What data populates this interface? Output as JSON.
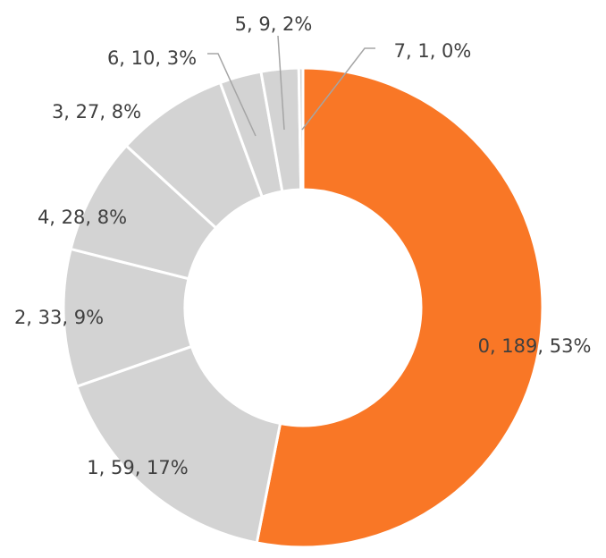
{
  "chart_data": {
    "type": "donut",
    "start_angle_deg": 0,
    "direction": "clockwise",
    "colors": {
      "highlight": "#F97726",
      "other": "#D3D3D3",
      "separator": "#FFFFFF",
      "label_text": "#3F3F3F",
      "leader_line": "#A5A5A5"
    },
    "slices": [
      {
        "category": "0",
        "value": 189,
        "percent": "53%",
        "label": "0, 189, 53%",
        "highlight": true
      },
      {
        "category": "1",
        "value": 59,
        "percent": "17%",
        "label": "1, 59, 17%",
        "highlight": false
      },
      {
        "category": "2",
        "value": 33,
        "percent": "9%",
        "label": "2, 33, 9%",
        "highlight": false
      },
      {
        "category": "4",
        "value": 28,
        "percent": "8%",
        "label": "4, 28, 8%",
        "highlight": false
      },
      {
        "category": "3",
        "value": 27,
        "percent": "8%",
        "label": "3, 27, 8%",
        "highlight": false
      },
      {
        "category": "6",
        "value": 10,
        "percent": "3%",
        "label": "6, 10, 3%",
        "highlight": false
      },
      {
        "category": "5",
        "value": 9,
        "percent": "2%",
        "label": "5, 9, 2%",
        "highlight": false
      },
      {
        "category": "7",
        "value": 1,
        "percent": "0%",
        "label": "7, 1, 0%",
        "highlight": false
      }
    ]
  }
}
